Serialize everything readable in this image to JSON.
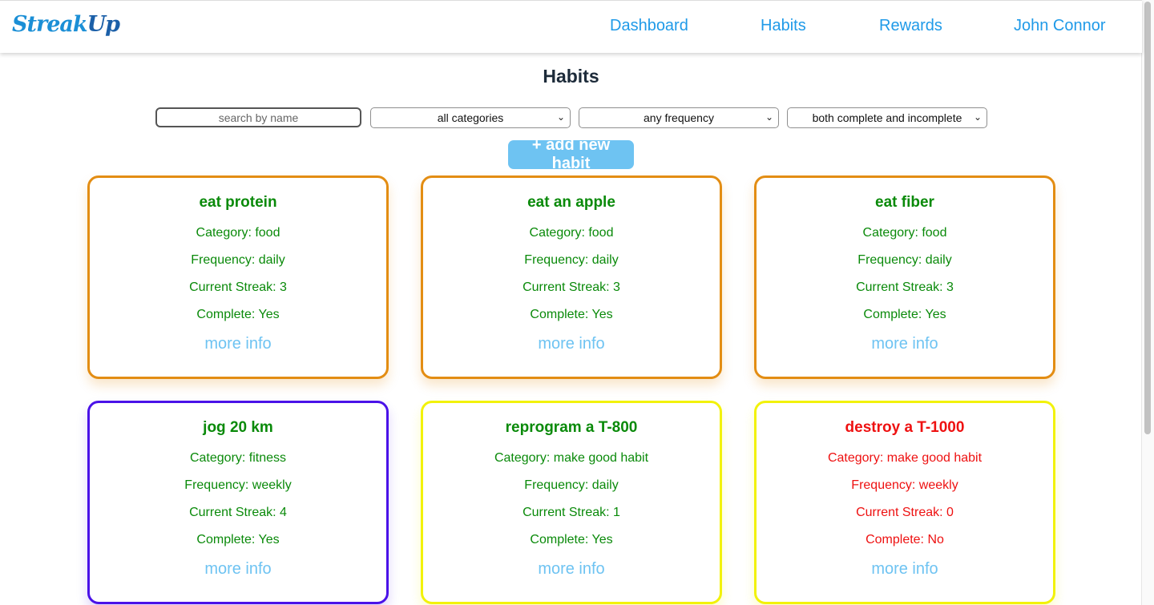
{
  "nav": {
    "logo_main": "Streak",
    "logo_accent": "Up",
    "links": [
      "Dashboard",
      "Habits",
      "Rewards",
      "John Connor"
    ]
  },
  "page": {
    "title": "Habits"
  },
  "filters": {
    "search_placeholder": "search by name",
    "category_selected": "all categories",
    "frequency_selected": "any frequency",
    "status_selected": "both complete and incomplete"
  },
  "add_button": "+ add new habit",
  "colors": {
    "complete_text": "#0a8a0a",
    "incomplete_text": "#ee1111",
    "food_border": "#e38d13",
    "fitness_border": "#4a12e8",
    "good_habit_border": "#f2f20a",
    "accent": "#6ec3f2"
  },
  "habits": [
    {
      "name": "eat protein",
      "category": "Category: food",
      "frequency": "Frequency: daily",
      "streak": "Current Streak: 3",
      "complete": "Complete: Yes",
      "more": "more info"
    },
    {
      "name": "eat an apple",
      "category": "Category: food",
      "frequency": "Frequency: daily",
      "streak": "Current Streak: 3",
      "complete": "Complete: Yes",
      "more": "more info"
    },
    {
      "name": "eat fiber",
      "category": "Category: food",
      "frequency": "Frequency: daily",
      "streak": "Current Streak: 3",
      "complete": "Complete: Yes",
      "more": "more info"
    },
    {
      "name": "jog 20 km",
      "category": "Category: fitness",
      "frequency": "Frequency: weekly",
      "streak": "Current Streak: 4",
      "complete": "Complete: Yes",
      "more": "more info"
    },
    {
      "name": "reprogram a T-800",
      "category": "Category: make good habit",
      "frequency": "Frequency: daily",
      "streak": "Current Streak: 1",
      "complete": "Complete: Yes",
      "more": "more info"
    },
    {
      "name": "destroy a T-1000",
      "category": "Category: make good habit",
      "frequency": "Frequency: weekly",
      "streak": "Current Streak: 0",
      "complete": "Complete: No",
      "more": "more info"
    }
  ]
}
